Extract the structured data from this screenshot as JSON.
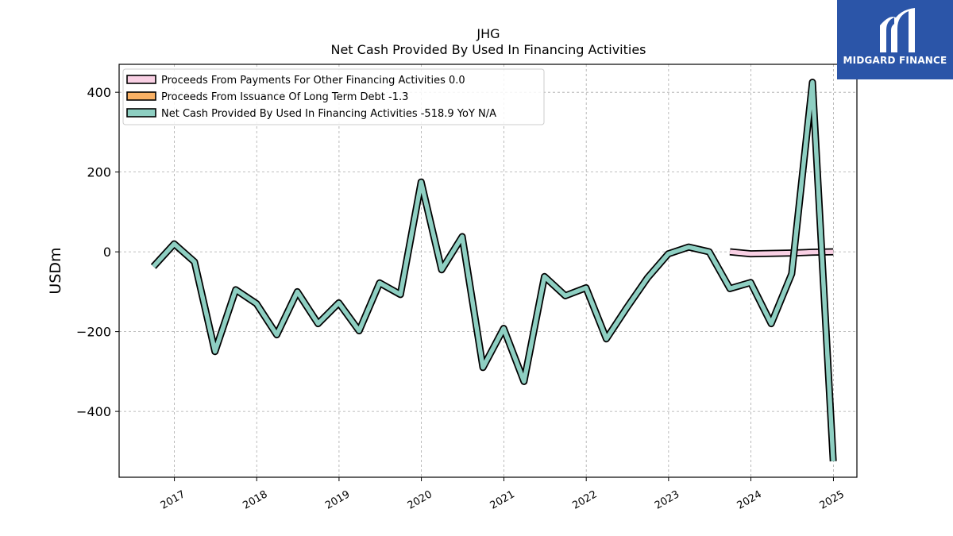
{
  "colors": {
    "other_financing": "#f9d0e4",
    "long_term_debt": "#f9b165",
    "net_cash": "#8ecfc2",
    "logo_bg": "#2b55a8"
  },
  "logo": {
    "text": "MIDGARD FINANCE"
  },
  "chart_data": {
    "type": "line",
    "title": "JHG",
    "subtitle": "Net Cash Provided By Used In Financing Activities",
    "xlabel": "",
    "ylabel": "USDm",
    "x_ticks": [
      "2017",
      "2018",
      "2019",
      "2020",
      "2021",
      "2022",
      "2023",
      "2024",
      "2025"
    ],
    "y_ticks": [
      400,
      200,
      0,
      -200,
      -400
    ],
    "y_tick_labels": [
      "400",
      "200",
      "0",
      "−200",
      "−400"
    ],
    "ylim": [
      -565,
      470
    ],
    "xlim": [
      "2016-05-01",
      "2025-04-15"
    ],
    "grid": true,
    "legend_position": "top-left",
    "legend": [
      "Proceeds From Payments For Other Financing Activities  0.0",
      "Proceeds From Issuance Of Long Term Debt  -1.3",
      "Net Cash Provided By Used In Financing Activities  -518.9 YoY N/A"
    ],
    "series": [
      {
        "name": "Proceeds From Payments For Other Financing Activities",
        "color_key": "other_financing",
        "x": [
          "2023-09-30",
          "2023-12-31",
          "2024-03-31",
          "2024-06-30",
          "2024-09-30",
          "2024-12-31"
        ],
        "values": [
          0,
          -5,
          -4,
          -3,
          -1,
          0
        ]
      },
      {
        "name": "Proceeds From Issuance Of Long Term Debt",
        "color_key": "long_term_debt",
        "x": [],
        "values": []
      },
      {
        "name": "Net Cash Provided By Used In Financing Activities",
        "color_key": "net_cash",
        "x": [
          "2016-09-30",
          "2016-12-31",
          "2017-03-31",
          "2017-06-30",
          "2017-09-30",
          "2017-12-31",
          "2018-03-31",
          "2018-06-30",
          "2018-09-30",
          "2018-12-31",
          "2019-03-31",
          "2019-06-30",
          "2019-09-30",
          "2019-12-31",
          "2020-03-31",
          "2020-06-30",
          "2020-09-30",
          "2020-12-31",
          "2021-03-31",
          "2021-06-30",
          "2021-09-30",
          "2021-12-31",
          "2022-03-31",
          "2022-06-30",
          "2022-09-30",
          "2022-12-31",
          "2023-03-31",
          "2023-06-30",
          "2023-09-30",
          "2023-12-31",
          "2024-03-31",
          "2024-06-30",
          "2024-09-30",
          "2024-12-31"
        ],
        "values": [
          -37,
          20,
          -25,
          -250,
          -95,
          -130,
          -208,
          -100,
          -180,
          -128,
          -198,
          -78,
          -107,
          175,
          -45,
          38,
          -290,
          -192,
          -325,
          -62,
          -110,
          -90,
          -218,
          -140,
          -65,
          -5,
          12,
          0,
          -92,
          -77,
          -180,
          -55,
          425,
          -525
        ]
      }
    ]
  }
}
